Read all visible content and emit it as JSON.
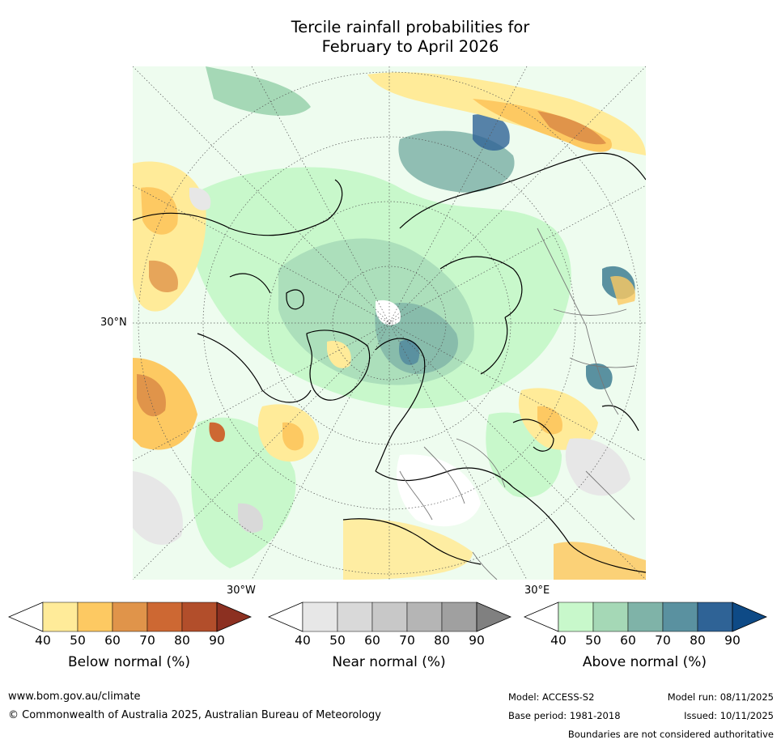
{
  "chart_data": {
    "type": "map",
    "title_line1": "Tercile rainfall probabilities for",
    "title_line2": "February to April 2026",
    "projection": "North polar stereographic",
    "lat_label": "30°N",
    "lon_labels": {
      "left": "30°W",
      "right": "30°E"
    },
    "colorbars": [
      {
        "name": "below",
        "label": "Below normal (%)",
        "ticks": [
          "40",
          "50",
          "60",
          "70",
          "80",
          "90"
        ],
        "colors": [
          "#ffffff",
          "#ffeb99",
          "#fdc962",
          "#e0944a",
          "#cd6833",
          "#b24e2b",
          "#8c3021"
        ]
      },
      {
        "name": "near",
        "label": "Near normal (%)",
        "ticks": [
          "40",
          "50",
          "60",
          "70",
          "80",
          "90"
        ],
        "colors": [
          "#ffffff",
          "#e7e7e7",
          "#d9d9d9",
          "#c8c8c8",
          "#b5b5b5",
          "#a0a0a0",
          "#808080"
        ]
      },
      {
        "name": "above",
        "label": "Above normal (%)",
        "ticks": [
          "40",
          "50",
          "60",
          "70",
          "80",
          "90"
        ],
        "colors": [
          "#ffffff",
          "#c8f8cb",
          "#a5d8b6",
          "#7fb3a8",
          "#5a91a0",
          "#2f6396",
          "#0e4a86"
        ]
      }
    ]
  },
  "footer": {
    "website": "www.bom.gov.au/climate",
    "copyright": "© Commonwealth of Australia 2025, Australian Bureau of Meteorology",
    "model": "Model: ACCESS-S2",
    "base_period": "Base period: 1981-2018",
    "model_run": "Model run: 08/11/2025",
    "issued": "Issued: 10/11/2025",
    "disclaimer": "Boundaries are not considered authoritative"
  }
}
